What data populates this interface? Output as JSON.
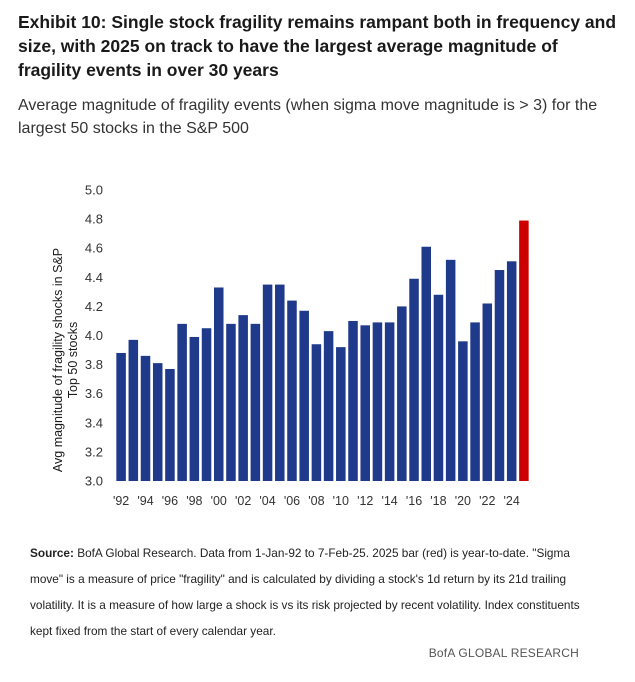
{
  "title": "Exhibit 10: Single stock fragility remains rampant both in frequency and size, with 2025 on track to have the largest average magnitude of fragility events in over 30 years",
  "subtitle": "Average magnitude of fragility events (when sigma move magnitude is > 3) for the largest 50 stocks in the S&P 500",
  "source": {
    "label": "Source:",
    "text": "BofA Global Research. Data from 1-Jan-92 to 7-Feb-25. 2025 bar (red) is year-to-date. \"Sigma move\" is a measure of price \"fragility\" and is calculated by dividing a stock's 1d return by its 21d trailing volatility. It is a measure of how large a shock is vs its risk projected by recent volatility. Index constituents kept fixed from the start of every calendar year."
  },
  "brand": "BofA GLOBAL RESEARCH",
  "colors": {
    "bar": "#1f3a8a",
    "highlight": "#cc0000"
  },
  "chart_data": {
    "type": "bar",
    "ylabel": "Avg magnitude of fragility shocks in S&P",
    "ylabel2": "Top 50 stocks",
    "ylim": [
      3.0,
      5.0
    ],
    "yticks": [
      "3.0",
      "3.2",
      "3.4",
      "3.6",
      "3.8",
      "4.0",
      "4.2",
      "4.4",
      "4.6",
      "4.8",
      "5.0"
    ],
    "grid": false,
    "x_tick_labels": [
      "'92",
      "'94",
      "'96",
      "'98",
      "'00",
      "'02",
      "'04",
      "'06",
      "'08",
      "'10",
      "'12",
      "'14",
      "'16",
      "'18",
      "'20",
      "'22",
      "'24"
    ],
    "categories": [
      1992,
      1993,
      1994,
      1995,
      1996,
      1997,
      1998,
      1999,
      2000,
      2001,
      2002,
      2003,
      2004,
      2005,
      2006,
      2007,
      2008,
      2009,
      2010,
      2011,
      2012,
      2013,
      2014,
      2015,
      2016,
      2017,
      2018,
      2019,
      2020,
      2021,
      2022,
      2023,
      2024,
      2025
    ],
    "values": [
      3.88,
      3.97,
      3.86,
      3.81,
      3.77,
      4.08,
      3.99,
      4.05,
      4.33,
      4.08,
      4.14,
      4.08,
      4.35,
      4.35,
      4.24,
      4.17,
      3.94,
      4.03,
      3.92,
      4.1,
      4.07,
      4.09,
      4.09,
      4.2,
      4.39,
      4.61,
      4.28,
      4.52,
      3.96,
      4.09,
      4.22,
      4.45,
      4.51,
      4.79
    ],
    "highlight": [
      2025
    ]
  }
}
